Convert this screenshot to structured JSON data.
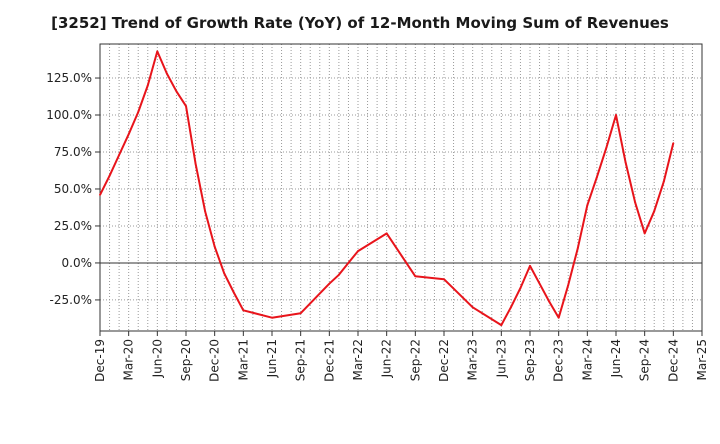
{
  "chart_data": {
    "type": "line",
    "title": "[3252]  Trend of Growth Rate (YoY) of 12-Month Moving Sum of Revenues",
    "xlabel": "",
    "ylabel": "",
    "x_tick_labels": [
      "Dec-19",
      "Mar-20",
      "Jun-20",
      "Sep-20",
      "Dec-20",
      "Mar-21",
      "Jun-21",
      "Sep-21",
      "Dec-21",
      "Mar-22",
      "Jun-22",
      "Sep-22",
      "Dec-22",
      "Mar-23",
      "Jun-23",
      "Sep-23",
      "Dec-23",
      "Mar-24",
      "Jun-24",
      "Sep-24",
      "Dec-24",
      "Mar-25"
    ],
    "y_tick_labels": [
      "-25.0%",
      "0.0%",
      "25.0%",
      "50.0%",
      "75.0%",
      "100.0%",
      "125.0%"
    ],
    "y_ticks": [
      -25,
      0,
      25,
      50,
      75,
      100,
      125
    ],
    "ylim": [
      -46,
      148
    ],
    "x_range": [
      "Dec-19",
      "Mar-25"
    ],
    "grid": true,
    "legend": "none",
    "series": [
      {
        "color": "#e8141b",
        "x": [
          "Dec-19",
          "Jan-20",
          "Feb-20",
          "Mar-20",
          "Apr-20",
          "May-20",
          "Jun-20",
          "Jul-20",
          "Aug-20",
          "Sep-20",
          "Oct-20",
          "Nov-20",
          "Dec-20",
          "Jan-21",
          "Feb-21",
          "Mar-21",
          "Jun-21",
          "Sep-21",
          "Dec-21",
          "Jan-22",
          "Feb-22",
          "Mar-22",
          "Jun-22",
          "Sep-22",
          "Dec-22",
          "Mar-23",
          "Jun-23",
          "Jul-23",
          "Aug-23",
          "Sep-23",
          "Oct-23",
          "Nov-23",
          "Dec-23",
          "Jan-24",
          "Feb-24",
          "Mar-24",
          "Apr-24",
          "May-24",
          "Jun-24",
          "Jul-24",
          "Aug-24",
          "Sep-24",
          "Oct-24",
          "Nov-24",
          "Dec-24"
        ],
        "values": [
          46,
          59,
          73,
          87,
          102,
          120,
          143,
          128,
          116,
          106,
          67,
          35,
          11,
          -7,
          -20,
          -32,
          -37,
          -34,
          -14,
          -8,
          0,
          8,
          20,
          -9,
          -11,
          -30,
          -42,
          -30,
          -17,
          -2,
          -14,
          -26,
          -37,
          -15,
          10,
          39,
          58,
          78,
          100,
          68,
          41,
          20,
          35,
          55,
          81
        ]
      }
    ]
  }
}
